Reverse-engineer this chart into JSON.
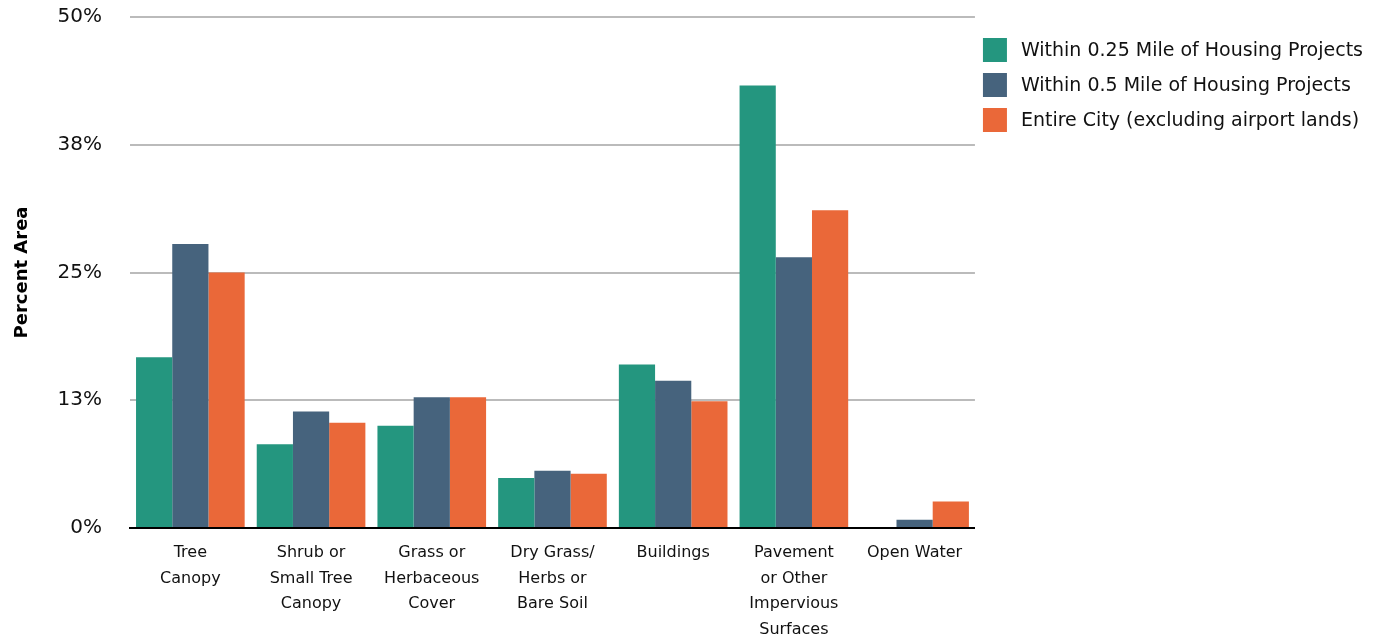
{
  "chart_data": {
    "type": "bar",
    "ylabel": "Percent Area",
    "categories": [
      "Tree\nCanopy",
      "Shrub or\nSmall Tree\nCanopy",
      "Grass or\nHerbaceous\nCover",
      "Dry Grass/\nHerbs or\nBare Soil",
      "Buildings",
      "Pavement\nor Other\nImpervious\nSurfaces",
      "Open Water"
    ],
    "series": [
      {
        "name": "Within 0.25 Mile of Housing Projects",
        "color": "#24967f",
        "values": [
          16.7,
          8.2,
          10.0,
          4.9,
          16.0,
          43.3,
          0
        ]
      },
      {
        "name": "Within 0.5 Mile of Housing Projects",
        "color": "#46637d",
        "values": [
          27.8,
          11.4,
          12.8,
          5.6,
          14.4,
          26.5,
          0.8
        ]
      },
      {
        "name": "Entire City (excluding airport lands)",
        "color": "#ea6839",
        "values": [
          25.0,
          10.3,
          12.8,
          5.3,
          12.4,
          31.1,
          2.6
        ]
      }
    ],
    "ylim": [
      0,
      50
    ],
    "yticks": [
      {
        "value": 0,
        "label": "0%"
      },
      {
        "value": 12.5,
        "label": "13%"
      },
      {
        "value": 25,
        "label": "25%"
      },
      {
        "value": 37.5,
        "label": "38%"
      },
      {
        "value": 50,
        "label": "50%"
      }
    ],
    "grid": "y",
    "legend": "top right"
  }
}
